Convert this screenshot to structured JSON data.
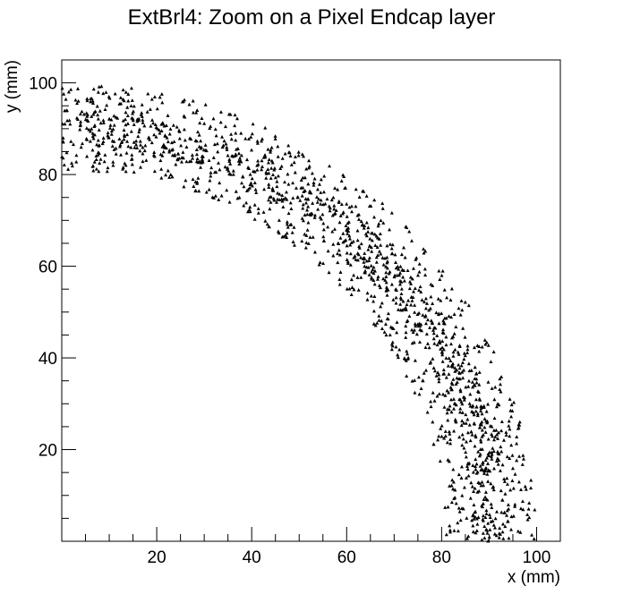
{
  "chart_data": {
    "type": "scatter",
    "title": "ExtBrl4: Zoom on a Pixel Endcap layer",
    "xlabel": "x (mm)",
    "ylabel": "y (mm)",
    "xlim": [
      0,
      105
    ],
    "ylim": [
      0,
      105
    ],
    "xticks": [
      20,
      40,
      60,
      80,
      100
    ],
    "yticks": [
      20,
      40,
      60,
      80,
      100
    ],
    "marker": "triangle",
    "marker_color": "#000000",
    "grid": false,
    "legend": "none",
    "distribution": {
      "shape": "annular quarter-ring",
      "inner_radius_mm": 81,
      "outer_radius_mm": 100,
      "angle_range_deg": [
        0,
        90
      ],
      "approx_point_count": 1600
    }
  }
}
